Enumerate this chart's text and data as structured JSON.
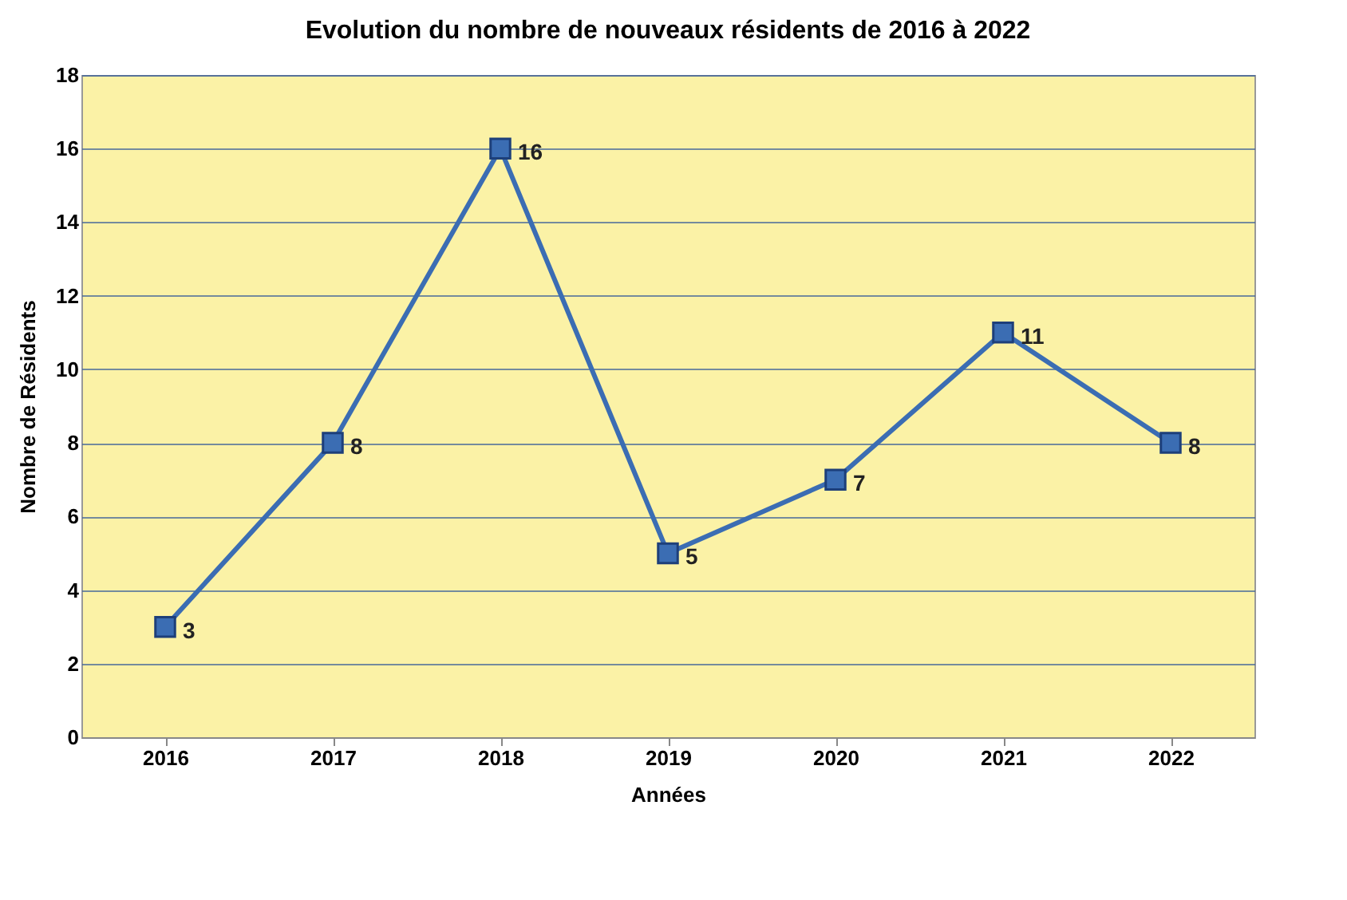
{
  "chart_data": {
    "type": "line",
    "title": "Evolution du nombre de nouveaux résidents de 2016 à 2022",
    "xlabel": "Années",
    "ylabel": "Nombre de Résidents",
    "categories": [
      "2016",
      "2017",
      "2018",
      "2019",
      "2020",
      "2021",
      "2022"
    ],
    "series": [
      {
        "color": "#3b6db3",
        "values": [
          3,
          8,
          16,
          5,
          7,
          11,
          8
        ]
      }
    ],
    "ylim": [
      0,
      18
    ],
    "yticks": [
      0,
      2,
      4,
      6,
      8,
      10,
      12,
      14,
      16,
      18
    ],
    "grid": "y",
    "marker": "square",
    "line_style": "solid",
    "data_labels": true,
    "legend": false
  }
}
